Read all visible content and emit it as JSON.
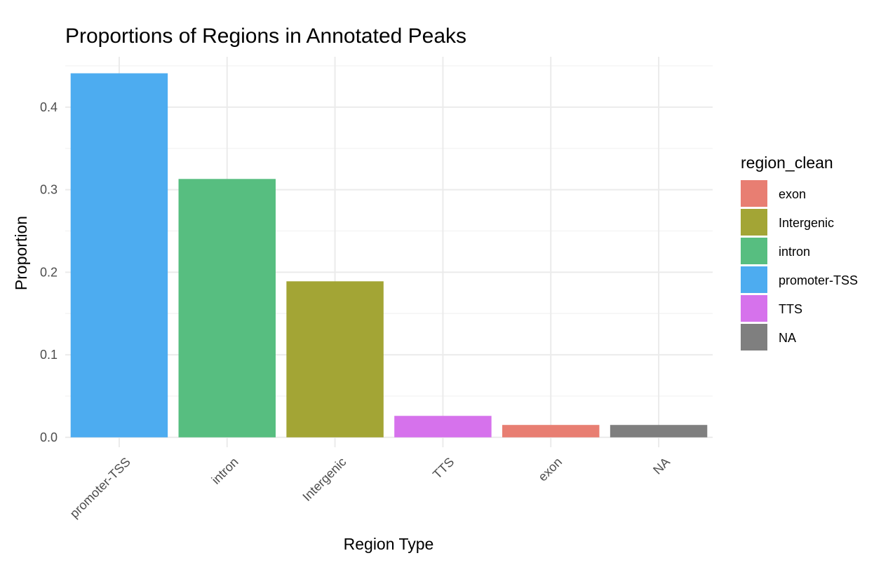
{
  "chart_data": {
    "type": "bar",
    "title": "Proportions of Regions in Annotated Peaks",
    "xlabel": "Region Type",
    "ylabel": "Proportion",
    "categories": [
      "promoter-TSS",
      "intron",
      "Intergenic",
      "TTS",
      "exon",
      "NA"
    ],
    "values": [
      0.441,
      0.313,
      0.189,
      0.026,
      0.015,
      0.015
    ],
    "bar_colors": [
      "#4DACF0",
      "#57BE80",
      "#A3A535",
      "#D672EC",
      "#E87E72",
      "#7F7F7F"
    ],
    "ylim": [
      -0.012,
      0.461
    ],
    "yticks": [
      0.0,
      0.1,
      0.2,
      0.3,
      0.4
    ],
    "ytick_labels": [
      "0.0",
      "0.1",
      "0.2",
      "0.3",
      "0.4"
    ],
    "grid": true,
    "legend": {
      "title": "region_clean",
      "position": "right",
      "items": [
        {
          "label": "exon",
          "color": "#E87E72"
        },
        {
          "label": "Intergenic",
          "color": "#A3A535"
        },
        {
          "label": "intron",
          "color": "#57BE80"
        },
        {
          "label": "promoter-TSS",
          "color": "#4DACF0"
        },
        {
          "label": "TTS",
          "color": "#D672EC"
        },
        {
          "label": "NA",
          "color": "#7F7F7F"
        }
      ]
    }
  }
}
